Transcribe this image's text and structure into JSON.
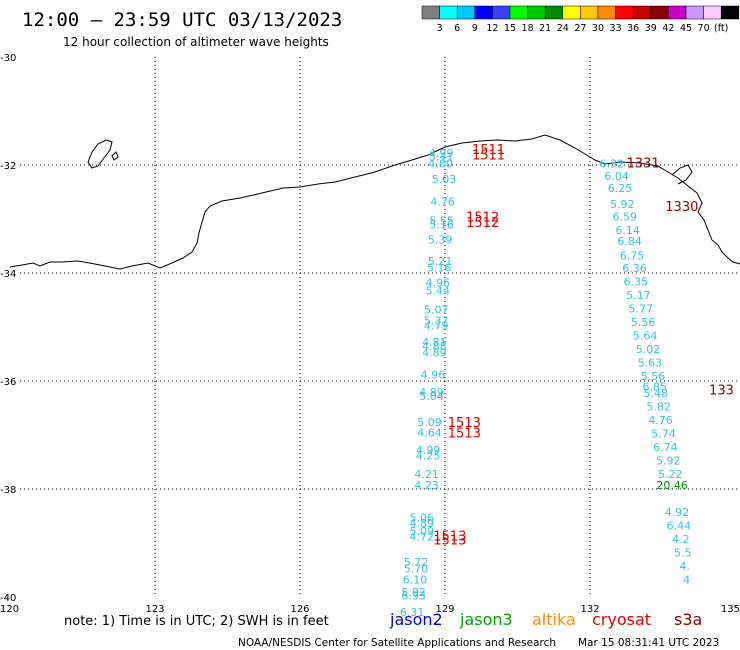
{
  "header": {
    "title": "12:00 – 23:59 UTC 03/13/2023",
    "subtitle": "12 hour collection of altimeter wave heights"
  },
  "legend": {
    "colors": [
      "#808080",
      "#00ffff",
      "#00c8ff",
      "#0000ff",
      "#3c3cff",
      "#00ff00",
      "#00c800",
      "#008c00",
      "#ffff00",
      "#ffc800",
      "#ff8c00",
      "#ff0000",
      "#c80000",
      "#8c0000",
      "#c800c8",
      "#c896ff",
      "#ffc8ff",
      "#000000"
    ],
    "labels": [
      "3",
      "6",
      "9",
      "12",
      "15",
      "18",
      "21",
      "24",
      "27",
      "30",
      "33",
      "36",
      "39",
      "42",
      "45",
      "70",
      "(ft)"
    ]
  },
  "axes": {
    "lon_ticks": [
      "120",
      "123",
      "126",
      "129",
      "132",
      "135"
    ],
    "lat_ticks": [
      "-30",
      "-32",
      "-34",
      "-36",
      "-38",
      "-40"
    ]
  },
  "tracks": [
    {
      "name": "track-a",
      "color": "#2ec4e0",
      "points": [
        {
          "lat": -31.85,
          "lon": 128.92,
          "value": "4.99"
        },
        {
          "lat": -31.92,
          "lon": 128.92,
          "value": "5.41"
        },
        {
          "lat": -32.05,
          "lon": 128.91,
          "value": "4.80"
        },
        {
          "lat": -32.33,
          "lon": 128.98,
          "value": "5.03"
        },
        {
          "lat": -32.75,
          "lon": 128.95,
          "value": "4.76"
        },
        {
          "lat": -33.1,
          "lon": 128.93,
          "value": "5.55"
        },
        {
          "lat": -33.18,
          "lon": 128.93,
          "value": "5.16"
        },
        {
          "lat": -33.45,
          "lon": 128.9,
          "value": "5.39"
        },
        {
          "lat": -33.85,
          "lon": 128.9,
          "value": "5.21"
        },
        {
          "lat": -33.97,
          "lon": 128.88,
          "value": "5.16"
        },
        {
          "lat": -34.25,
          "lon": 128.85,
          "value": "4.96"
        },
        {
          "lat": -34.4,
          "lon": 128.85,
          "value": "5.44"
        },
        {
          "lat": -34.75,
          "lon": 128.82,
          "value": "5.07"
        },
        {
          "lat": -34.95,
          "lon": 128.82,
          "value": "5.37"
        },
        {
          "lat": -35.05,
          "lon": 128.82,
          "value": "4.79"
        },
        {
          "lat": -35.35,
          "lon": 128.78,
          "value": "4.81"
        },
        {
          "lat": -35.43,
          "lon": 128.78,
          "value": "4.88"
        },
        {
          "lat": -35.55,
          "lon": 128.78,
          "value": "4.89"
        },
        {
          "lat": -35.95,
          "lon": 128.75,
          "value": "4.96"
        },
        {
          "lat": -36.28,
          "lon": 128.72,
          "value": "4.89"
        },
        {
          "lat": -36.35,
          "lon": 128.72,
          "value": "5.04"
        },
        {
          "lat": -36.83,
          "lon": 128.68,
          "value": "5.09"
        },
        {
          "lat": -37.03,
          "lon": 128.68,
          "value": "4.64"
        },
        {
          "lat": -37.35,
          "lon": 128.65,
          "value": "4.99"
        },
        {
          "lat": -37.45,
          "lon": 128.65,
          "value": "4.25"
        },
        {
          "lat": -37.8,
          "lon": 128.62,
          "value": "4.21"
        },
        {
          "lat": -38.0,
          "lon": 128.62,
          "value": "4.23"
        },
        {
          "lat": -38.6,
          "lon": 128.52,
          "value": "5.06"
        },
        {
          "lat": -38.7,
          "lon": 128.52,
          "value": "4.89"
        },
        {
          "lat": -38.85,
          "lon": 128.52,
          "value": "5.09"
        },
        {
          "lat": -38.95,
          "lon": 128.52,
          "value": "4.72"
        },
        {
          "lat": -39.43,
          "lon": 128.4,
          "value": "5.72"
        },
        {
          "lat": -39.55,
          "lon": 128.4,
          "value": "5.70"
        },
        {
          "lat": -39.75,
          "lon": 128.38,
          "value": "6.10"
        },
        {
          "lat": -39.98,
          "lon": 128.35,
          "value": "5.92"
        },
        {
          "lat": -40.05,
          "lon": 128.35,
          "value": "6.93"
        },
        {
          "lat": -40.35,
          "lon": 128.32,
          "value": "6.31"
        }
      ]
    },
    {
      "name": "track-b",
      "color": "#2ec4e0",
      "points": [
        {
          "lat": -32.05,
          "lon": 132.45,
          "value": "6.32"
        },
        {
          "lat": -32.28,
          "lon": 132.55,
          "value": "6.04"
        },
        {
          "lat": -32.5,
          "lon": 132.62,
          "value": "6.25"
        },
        {
          "lat": -32.8,
          "lon": 132.67,
          "value": "5.92"
        },
        {
          "lat": -33.03,
          "lon": 132.72,
          "value": "6.59"
        },
        {
          "lat": -33.28,
          "lon": 132.78,
          "value": "6.14"
        },
        {
          "lat": -33.48,
          "lon": 132.82,
          "value": "6.84"
        },
        {
          "lat": -33.75,
          "lon": 132.87,
          "value": "6.75"
        },
        {
          "lat": -33.98,
          "lon": 132.92,
          "value": "6.36"
        },
        {
          "lat": -34.23,
          "lon": 132.95,
          "value": "6.35"
        },
        {
          "lat": -34.48,
          "lon": 133.0,
          "value": "5.17"
        },
        {
          "lat": -34.73,
          "lon": 133.05,
          "value": "5.77"
        },
        {
          "lat": -34.98,
          "lon": 133.1,
          "value": "5.56"
        },
        {
          "lat": -35.23,
          "lon": 133.14,
          "value": "5.64"
        },
        {
          "lat": -35.48,
          "lon": 133.2,
          "value": "5.02"
        },
        {
          "lat": -35.73,
          "lon": 133.24,
          "value": "5.63"
        },
        {
          "lat": -35.98,
          "lon": 133.3,
          "value": "5.56"
        },
        {
          "lat": -36.18,
          "lon": 133.34,
          "value": "6.85"
        },
        {
          "lat": -36.3,
          "lon": 133.36,
          "value": "5.48"
        },
        {
          "lat": -36.55,
          "lon": 133.42,
          "value": "5.82"
        },
        {
          "lat": -36.8,
          "lon": 133.46,
          "value": "4.76"
        },
        {
          "lat": -37.05,
          "lon": 133.52,
          "value": "5.74"
        },
        {
          "lat": -37.3,
          "lon": 133.56,
          "value": "6.74"
        },
        {
          "lat": -37.55,
          "lon": 133.62,
          "value": "5.92"
        },
        {
          "lat": -37.8,
          "lon": 133.66,
          "value": "5.22"
        },
        {
          "lat": -38.5,
          "lon": 133.8,
          "value": "4.92"
        },
        {
          "lat": -38.75,
          "lon": 133.84,
          "value": "6.44"
        },
        {
          "lat": -39.0,
          "lon": 133.88,
          "value": "4.2"
        },
        {
          "lat": -39.25,
          "lon": 133.92,
          "value": "5.5"
        },
        {
          "lat": -39.5,
          "lon": 133.96,
          "value": "4."
        },
        {
          "lat": -39.75,
          "lon": 134.0,
          "value": "4"
        }
      ]
    }
  ],
  "highlight_values": [
    {
      "lat": -38.0,
      "lon": 133.7,
      "value": "20.46",
      "color": "#008c00"
    }
  ],
  "time_labels": [
    {
      "lat": -31.8,
      "lon": 129.9,
      "value": "1511",
      "color": "#e00000"
    },
    {
      "lat": -31.9,
      "lon": 129.9,
      "value": "1511",
      "color": "#e00000"
    },
    {
      "lat": -33.05,
      "lon": 129.78,
      "value": "1512",
      "color": "#e00000"
    },
    {
      "lat": -33.15,
      "lon": 129.78,
      "value": "1512",
      "color": "#e00000"
    },
    {
      "lat": -36.85,
      "lon": 129.4,
      "value": "1513",
      "color": "#e00000"
    },
    {
      "lat": -37.05,
      "lon": 129.4,
      "value": "1513",
      "color": "#e00000"
    },
    {
      "lat": -38.95,
      "lon": 129.1,
      "value": "1513",
      "color": "#e00000"
    },
    {
      "lat": -39.03,
      "lon": 129.1,
      "value": "1513",
      "color": "#e00000"
    },
    {
      "lat": -32.05,
      "lon": 133.1,
      "value": "1331",
      "color": "#8c0000"
    },
    {
      "lat": -32.85,
      "lon": 133.9,
      "value": "1330",
      "color": "#8c0000"
    },
    {
      "lat": -36.25,
      "lon": 134.72,
      "value": "133",
      "color": "#8c0000"
    }
  ],
  "note": "note: 1) Time is in UTC; 2) SWH is in feet",
  "missions": [
    {
      "name": "jason2",
      "color": "#0000e6"
    },
    {
      "name": "jason3",
      "color": "#00a000"
    },
    {
      "name": "altika",
      "color": "#ff8c00"
    },
    {
      "name": "cryosat",
      "color": "#e00000"
    },
    {
      "name": "s3a",
      "color": "#8c0000"
    }
  ],
  "footer": {
    "credit": "NOAA/NESDIS Center for Satellite Applications and Research",
    "timestamp": "Mar 15 08:31:41 UTC 2023"
  }
}
